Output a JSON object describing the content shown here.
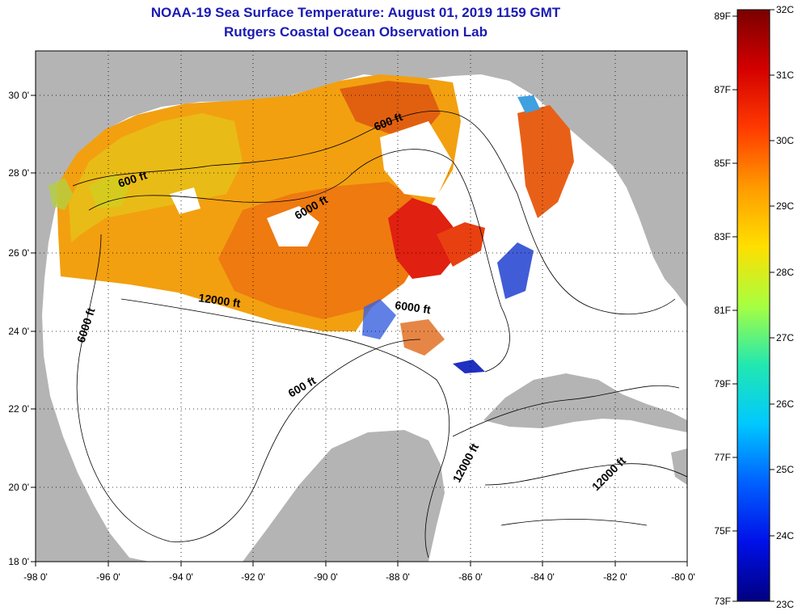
{
  "header": {
    "title": "NOAA-19 Sea Surface Temperature:  August 01, 2019 1159 GMT",
    "subtitle": "Rutgers Coastal Ocean Observation Lab"
  },
  "map": {
    "lat_labels": [
      "30 0'",
      "28 0'",
      "26 0'",
      "24 0'",
      "22 0'",
      "20 0'",
      "18 0'"
    ],
    "lon_labels": [
      "-98 0'",
      "-96 0'",
      "-94 0'",
      "-92 0'",
      "-90 0'",
      "-88 0'",
      "-86 0'",
      "-84 0'",
      "-82 0'",
      "-80 0'"
    ],
    "contour_labels": [
      "600 ft",
      "600 ft",
      "6000 ft",
      "12000 ft",
      "6000 ft",
      "6000 ft",
      "600 ft",
      "12000 ft",
      "12000 ft"
    ],
    "colors": {
      "land": "#b4b4b4",
      "water": "#ffffff",
      "border": "#000000"
    }
  },
  "colorbar": {
    "fahrenheit": [
      "89F",
      "87F",
      "85F",
      "83F",
      "81F",
      "79F",
      "77F",
      "75F",
      "73F"
    ],
    "celsius": [
      "32C",
      "31C",
      "30C",
      "29C",
      "28C",
      "27C",
      "26C",
      "25C",
      "24C",
      "23C"
    ]
  }
}
